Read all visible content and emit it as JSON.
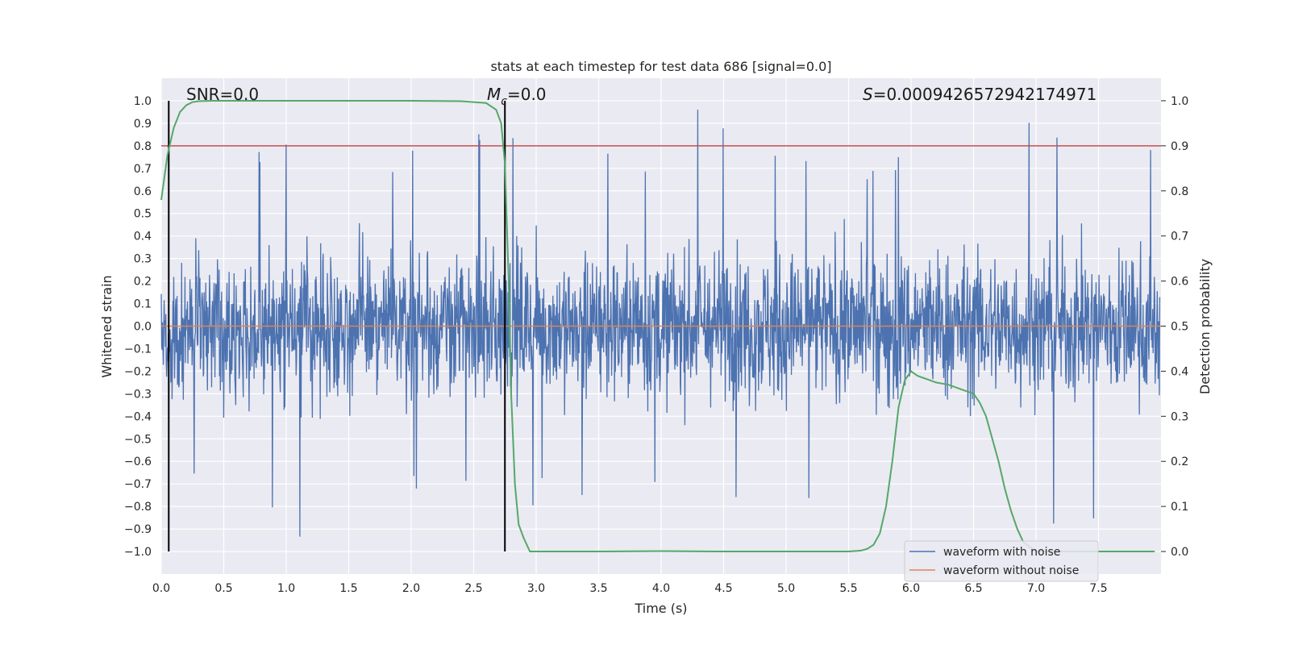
{
  "chart_data": {
    "type": "line",
    "title": "stats at each timestep for test data 686 [signal=0.0]",
    "xlabel": "Time (s)",
    "ylabel": "Whitened strain",
    "y2label": "Detection probability",
    "xlim": [
      0.0,
      8.0
    ],
    "ylim": [
      -1.1,
      1.1
    ],
    "y2lim": [
      -0.05,
      1.05
    ],
    "x_ticks": [
      "0.0",
      "0.5",
      "1.0",
      "1.5",
      "2.0",
      "2.5",
      "3.0",
      "3.5",
      "4.0",
      "4.5",
      "5.0",
      "5.5",
      "6.0",
      "6.5",
      "7.0",
      "7.5"
    ],
    "y_ticks": [
      "1.0",
      "0.9",
      "0.8",
      "0.7",
      "0.6",
      "0.5",
      "0.4",
      "0.3",
      "0.2",
      "0.1",
      "0.0",
      "−0.1",
      "−0.2",
      "−0.3",
      "−0.4",
      "−0.5",
      "−0.6",
      "−0.7",
      "−0.8",
      "−0.9",
      "−1.0"
    ],
    "y2_ticks": [
      "1.0",
      "0.9",
      "0.8",
      "0.7",
      "0.6",
      "0.5",
      "0.4",
      "0.3",
      "0.2",
      "0.1",
      "0.0"
    ],
    "grid": true,
    "legend_position": "bottom-right",
    "annotations": {
      "snr": "SNR=0.0",
      "mc_symbol": "M",
      "mc_sub": "c",
      "mc_value": "=0.0",
      "s_symbol": "S",
      "s_value": "=0.0009426572942174971"
    },
    "vertical_lines_x": [
      0.06,
      2.75
    ],
    "threshold_probability": 0.9,
    "series": [
      {
        "name": "waveform with noise",
        "color": "#4c72b0",
        "envelope": {
          "description_values_are_approximate": true,
          "upper_peak_values": [
            0.7,
            0.84,
            0.78,
            0.8,
            0.84,
            0.86,
            0.82,
            0.8,
            0.97,
            0.83,
            0.79,
            0.76,
            0.84,
            0.96,
            0.86,
            0.87
          ],
          "lower_peak_values": [
            -0.73,
            -0.84,
            -0.95,
            -0.83,
            -0.77,
            -0.8,
            -0.75,
            -0.79,
            -0.7,
            -0.79,
            -0.81,
            -0.88,
            -0.87,
            -0.95,
            -0.98,
            -0.91
          ]
        }
      },
      {
        "name": "waveform without noise",
        "color": "#dd8452",
        "x": [
          0.0,
          8.0
        ],
        "y": [
          0.0,
          0.0
        ]
      },
      {
        "name": "detection probability",
        "color": "#55a868",
        "axis": "right",
        "x": [
          0.0,
          0.05,
          0.1,
          0.15,
          0.2,
          0.25,
          0.3,
          0.4,
          0.6,
          1.0,
          1.5,
          2.0,
          2.4,
          2.6,
          2.68,
          2.72,
          2.75,
          2.78,
          2.8,
          2.83,
          2.86,
          2.9,
          2.95,
          3.5,
          4.0,
          4.5,
          5.0,
          5.5,
          5.6,
          5.65,
          5.7,
          5.75,
          5.8,
          5.85,
          5.9,
          5.95,
          6.0,
          6.05,
          6.1,
          6.15,
          6.2,
          6.3,
          6.4,
          6.5,
          6.55,
          6.6,
          6.65,
          6.7,
          6.75,
          6.8,
          6.85,
          6.9,
          6.95,
          7.0,
          7.5,
          7.95
        ],
        "y": [
          0.78,
          0.88,
          0.94,
          0.975,
          0.99,
          0.997,
          0.999,
          1.0,
          1.0,
          1.0,
          1.0,
          1.0,
          0.999,
          0.995,
          0.98,
          0.95,
          0.86,
          0.6,
          0.35,
          0.15,
          0.06,
          0.03,
          0.0,
          0.0,
          0.001,
          0.0,
          0.0,
          0.0,
          0.002,
          0.006,
          0.015,
          0.04,
          0.1,
          0.2,
          0.32,
          0.38,
          0.4,
          0.39,
          0.385,
          0.38,
          0.375,
          0.37,
          0.36,
          0.35,
          0.33,
          0.3,
          0.25,
          0.2,
          0.14,
          0.09,
          0.05,
          0.02,
          0.01,
          0.0,
          0.0,
          0.0
        ]
      }
    ]
  },
  "theme": {
    "plot_background": "#eaeaf2",
    "grid": "#ffffff",
    "threshold_line": "#c44e52",
    "vline": "#000000"
  }
}
